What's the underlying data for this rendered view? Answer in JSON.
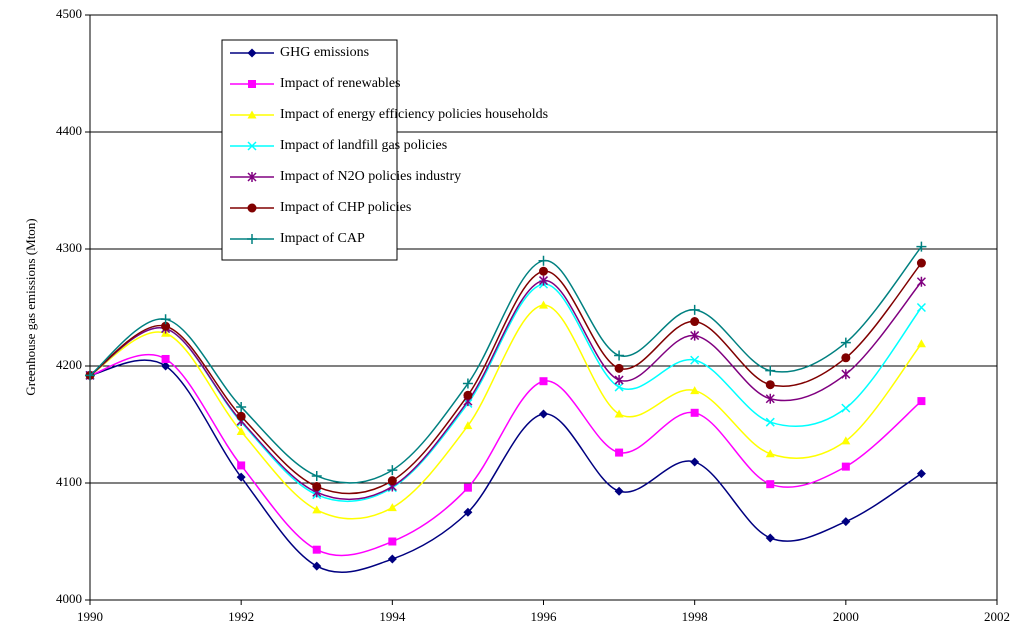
{
  "chart_data": {
    "type": "line",
    "y_label": "Greenhouse gas emissions (Mton)",
    "x": [
      1990,
      1991,
      1992,
      1993,
      1994,
      1995,
      1996,
      1997,
      1998,
      1999,
      2000,
      2001
    ],
    "xlim": [
      1990,
      2002
    ],
    "xticks": [
      1990,
      1992,
      1994,
      1996,
      1998,
      2000,
      2002
    ],
    "ylim": [
      4000,
      4500
    ],
    "yticks": [
      4000,
      4100,
      4200,
      4300,
      4400,
      4500
    ],
    "grid": true,
    "smooth": true,
    "legend": "upper-left",
    "series": [
      {
        "name": "GHG emissions",
        "color": "#000080",
        "marker": "diamond",
        "values": [
          4192,
          4200,
          4105,
          4029,
          4035,
          4075,
          4159,
          4093,
          4118,
          4053,
          4067,
          4108
        ]
      },
      {
        "name": "Impact of renewables",
        "color": "#ff00ff",
        "marker": "square",
        "values": [
          4192,
          4206,
          4115,
          4043,
          4050,
          4096,
          4187,
          4126,
          4160,
          4099,
          4114,
          4170
        ]
      },
      {
        "name": "Impact of energy efficiency policies households",
        "color": "#ffff00",
        "marker": "triangle",
        "values": [
          4192,
          4228,
          4144,
          4077,
          4079,
          4149,
          4252,
          4159,
          4179,
          4125,
          4136,
          4219
        ]
      },
      {
        "name": "Impact of landfill gas policies",
        "color": "#00ffff",
        "marker": "x",
        "values": [
          4192,
          4232,
          4152,
          4090,
          4096,
          4168,
          4270,
          4182,
          4205,
          4152,
          4164,
          4250
        ]
      },
      {
        "name": "Impact of N2O policies industry",
        "color": "#800080",
        "marker": "star",
        "values": [
          4192,
          4232,
          4153,
          4092,
          4097,
          4170,
          4273,
          4188,
          4226,
          4172,
          4193,
          4272
        ]
      },
      {
        "name": "Impact of CHP policies",
        "color": "#800000",
        "marker": "circle",
        "values": [
          4192,
          4234,
          4157,
          4097,
          4102,
          4175,
          4281,
          4198,
          4238,
          4184,
          4207,
          4288
        ]
      },
      {
        "name": "Impact of CAP",
        "color": "#008080",
        "marker": "plus",
        "values": [
          4192,
          4240,
          4165,
          4106,
          4111,
          4185,
          4290,
          4209,
          4248,
          4196,
          4220,
          4302
        ]
      }
    ]
  }
}
